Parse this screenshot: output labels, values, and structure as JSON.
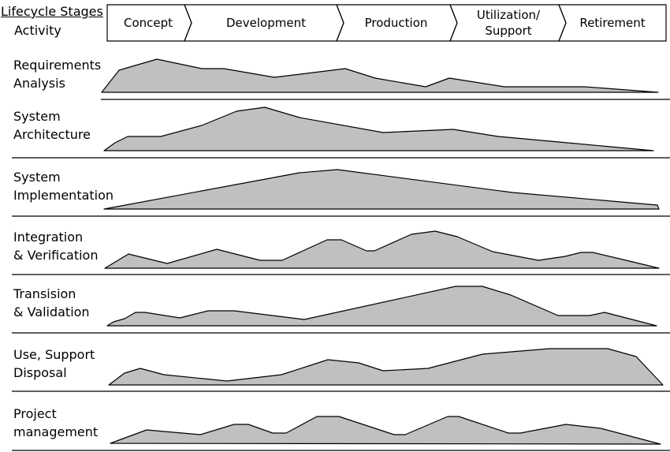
{
  "header": {
    "lifecycle_label": "Lifecycle Stages",
    "activity_label": "Activity"
  },
  "stages": [
    {
      "id": "concept",
      "lines": [
        "Concept"
      ]
    },
    {
      "id": "development",
      "lines": [
        "Development"
      ]
    },
    {
      "id": "production",
      "lines": [
        "Production"
      ]
    },
    {
      "id": "utilization",
      "lines": [
        "Utilization/",
        "Support"
      ]
    },
    {
      "id": "retirement",
      "lines": [
        "Retirement"
      ]
    }
  ],
  "activities": [
    {
      "id": "requirements-analysis",
      "lines": [
        "Requirements",
        "Analysis"
      ]
    },
    {
      "id": "system-architecture",
      "lines": [
        "System",
        "Architecture"
      ]
    },
    {
      "id": "system-implementation",
      "lines": [
        "System",
        "Implementation"
      ]
    },
    {
      "id": "integration-verification",
      "lines": [
        "Integration",
        "& Verification"
      ]
    },
    {
      "id": "transition-validation",
      "lines": [
        "Transision",
        "& Validation"
      ]
    },
    {
      "id": "use-support-disposal",
      "lines": [
        "Use, Support",
        "Disposal"
      ]
    },
    {
      "id": "project-management",
      "lines": [
        "Project",
        "management"
      ]
    }
  ],
  "colors": {
    "fill": "#c0c0c0",
    "stroke": "#000000",
    "background": "#ffffff"
  }
}
